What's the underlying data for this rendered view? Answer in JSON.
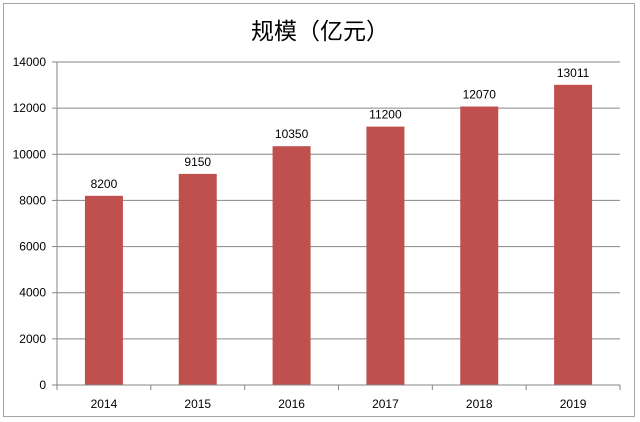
{
  "chart_data": {
    "type": "bar",
    "title": "规模（亿元）",
    "categories": [
      "2014",
      "2015",
      "2016",
      "2017",
      "2018",
      "2019"
    ],
    "values": [
      8200,
      9150,
      10350,
      11200,
      12070,
      13011
    ],
    "data_labels": [
      "8200",
      "9150",
      "10350",
      "11200",
      "12070",
      "13011"
    ],
    "xlabel": "",
    "ylabel": "",
    "ylim": [
      0,
      14000
    ],
    "yticks": [
      0,
      2000,
      4000,
      6000,
      8000,
      10000,
      12000,
      14000
    ],
    "grid": true,
    "legend": "none",
    "colors": {
      "bar": "#c0504d",
      "grid": "#868686",
      "axis": "#868686"
    }
  }
}
